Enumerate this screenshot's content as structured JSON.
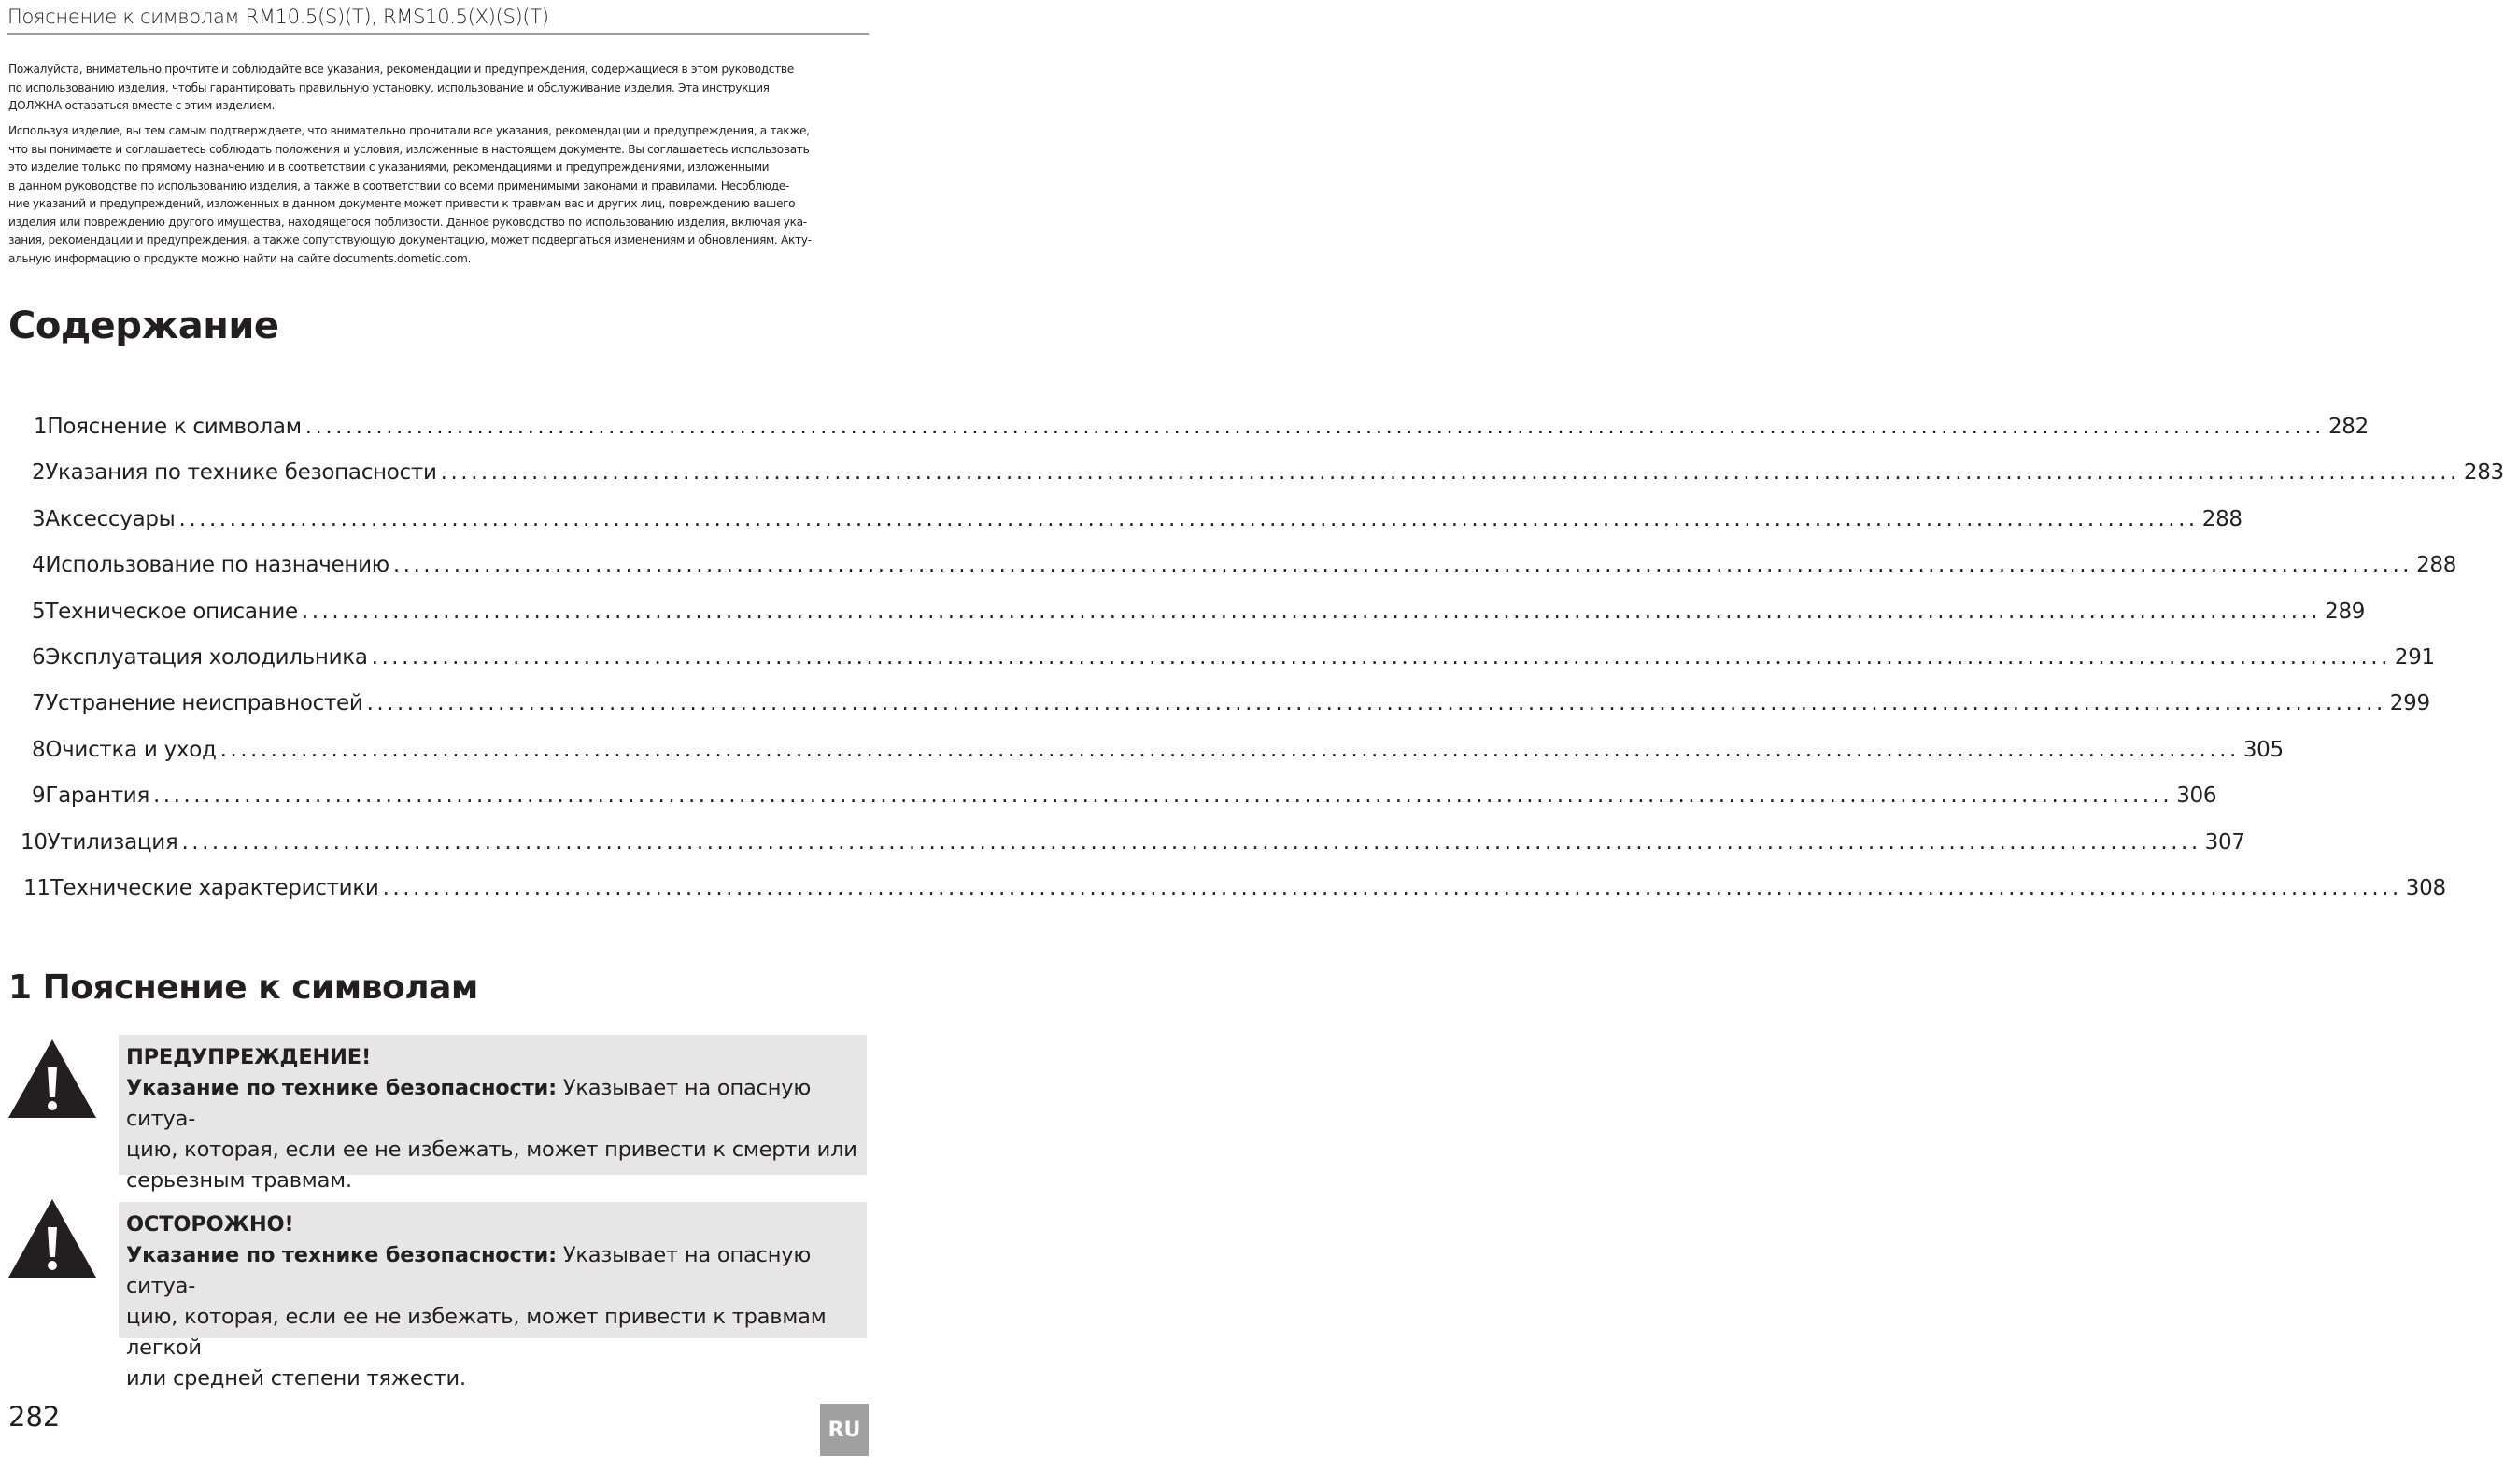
{
  "header": {
    "title": "Пояснение к символам RM10.5(S)(T), RMS10.5(X)(S)(T)"
  },
  "intro": {
    "p1": [
      "Пожалуйста, внимательно прочтите и соблюдайте все указания, рекомендации и предупреждения, содержащиеся в этом руководстве",
      "по использованию изделия, чтобы гарантировать правильную установку, использование и обслуживание изделия. Эта инструкция",
      "ДОЛЖНА оставаться вместе с этим изделием."
    ],
    "p2": [
      "Используя изделие, вы тем самым подтверждаете, что внимательно прочитали все указания, рекомендации и предупреждения, а также,",
      "что вы понимаете и соглашаетесь соблюдать положения и условия, изложенные в настоящем документе. Вы соглашаетесь использовать",
      "это изделие только по прямому назначению и в соответствии с указаниями, рекомендациями и предупреждениями, изложенными",
      "в данном руководстве по использованию изделия, а также в соответствии со всеми применимыми законами и правилами. Несоблюде-",
      "ние указаний и предупреждений, изложенных в данном документе может привести к травмам вас и других лиц, повреждению вашего",
      "изделия или повреждению другого имущества, находящегося поблизости. Данное руководство по использованию изделия, включая ука-",
      "зания, рекомендации и предупреждения, а также сопутствующую документацию, может подвергаться изменениям и обновлениям. Акту-",
      "альную информацию о продукте можно найти на сайте documents.dometic.com."
    ]
  },
  "toc": {
    "title": "Содержание",
    "items": [
      {
        "num": "1",
        "title": "Пояснение к символам",
        "page": "282"
      },
      {
        "num": "2",
        "title": "Указания по технике безопасности",
        "page": "283"
      },
      {
        "num": "3",
        "title": "Аксессуары",
        "page": "288"
      },
      {
        "num": "4",
        "title": "Использование по назначению",
        "page": "288"
      },
      {
        "num": "5",
        "title": "Техническое описание",
        "page": "289"
      },
      {
        "num": "6",
        "title": "Эксплуатация холодильника",
        "page": "291"
      },
      {
        "num": "7",
        "title": "Устранение неисправностей",
        "page": "299"
      },
      {
        "num": "8",
        "title": "Очистка и уход",
        "page": "305"
      },
      {
        "num": "9",
        "title": "Гарантия",
        "page": "306"
      },
      {
        "num": "10",
        "title": "Утилизация",
        "page": "307"
      },
      {
        "num": "11",
        "title": "Технические характеристики",
        "page": "308"
      }
    ]
  },
  "section1": {
    "title": "1 Пояснение к символам",
    "notices": [
      {
        "level": "ПРЕДУПРЕЖДЕНИЕ!",
        "label": "Указание по технике безопасности:",
        "lines": [
          " Указывает на опасную ситуа-",
          "цию, которая, если ее не избежать, может привести к смерти или",
          "серьезным травмам."
        ]
      },
      {
        "level": "ОСТОРОЖНО!",
        "label": "Указание по технике безопасности:",
        "lines": [
          " Указывает на опасную ситуа-",
          "цию, которая, если ее не избежать, может привести к травмам легкой",
          "или средней степени тяжести."
        ]
      }
    ]
  },
  "footer": {
    "page_number": "282",
    "language": "RU"
  },
  "colors": {
    "notice_bg": "#e6e6e6",
    "badge_bg": "#a0a0a0",
    "rule": "#9a9a9a"
  }
}
